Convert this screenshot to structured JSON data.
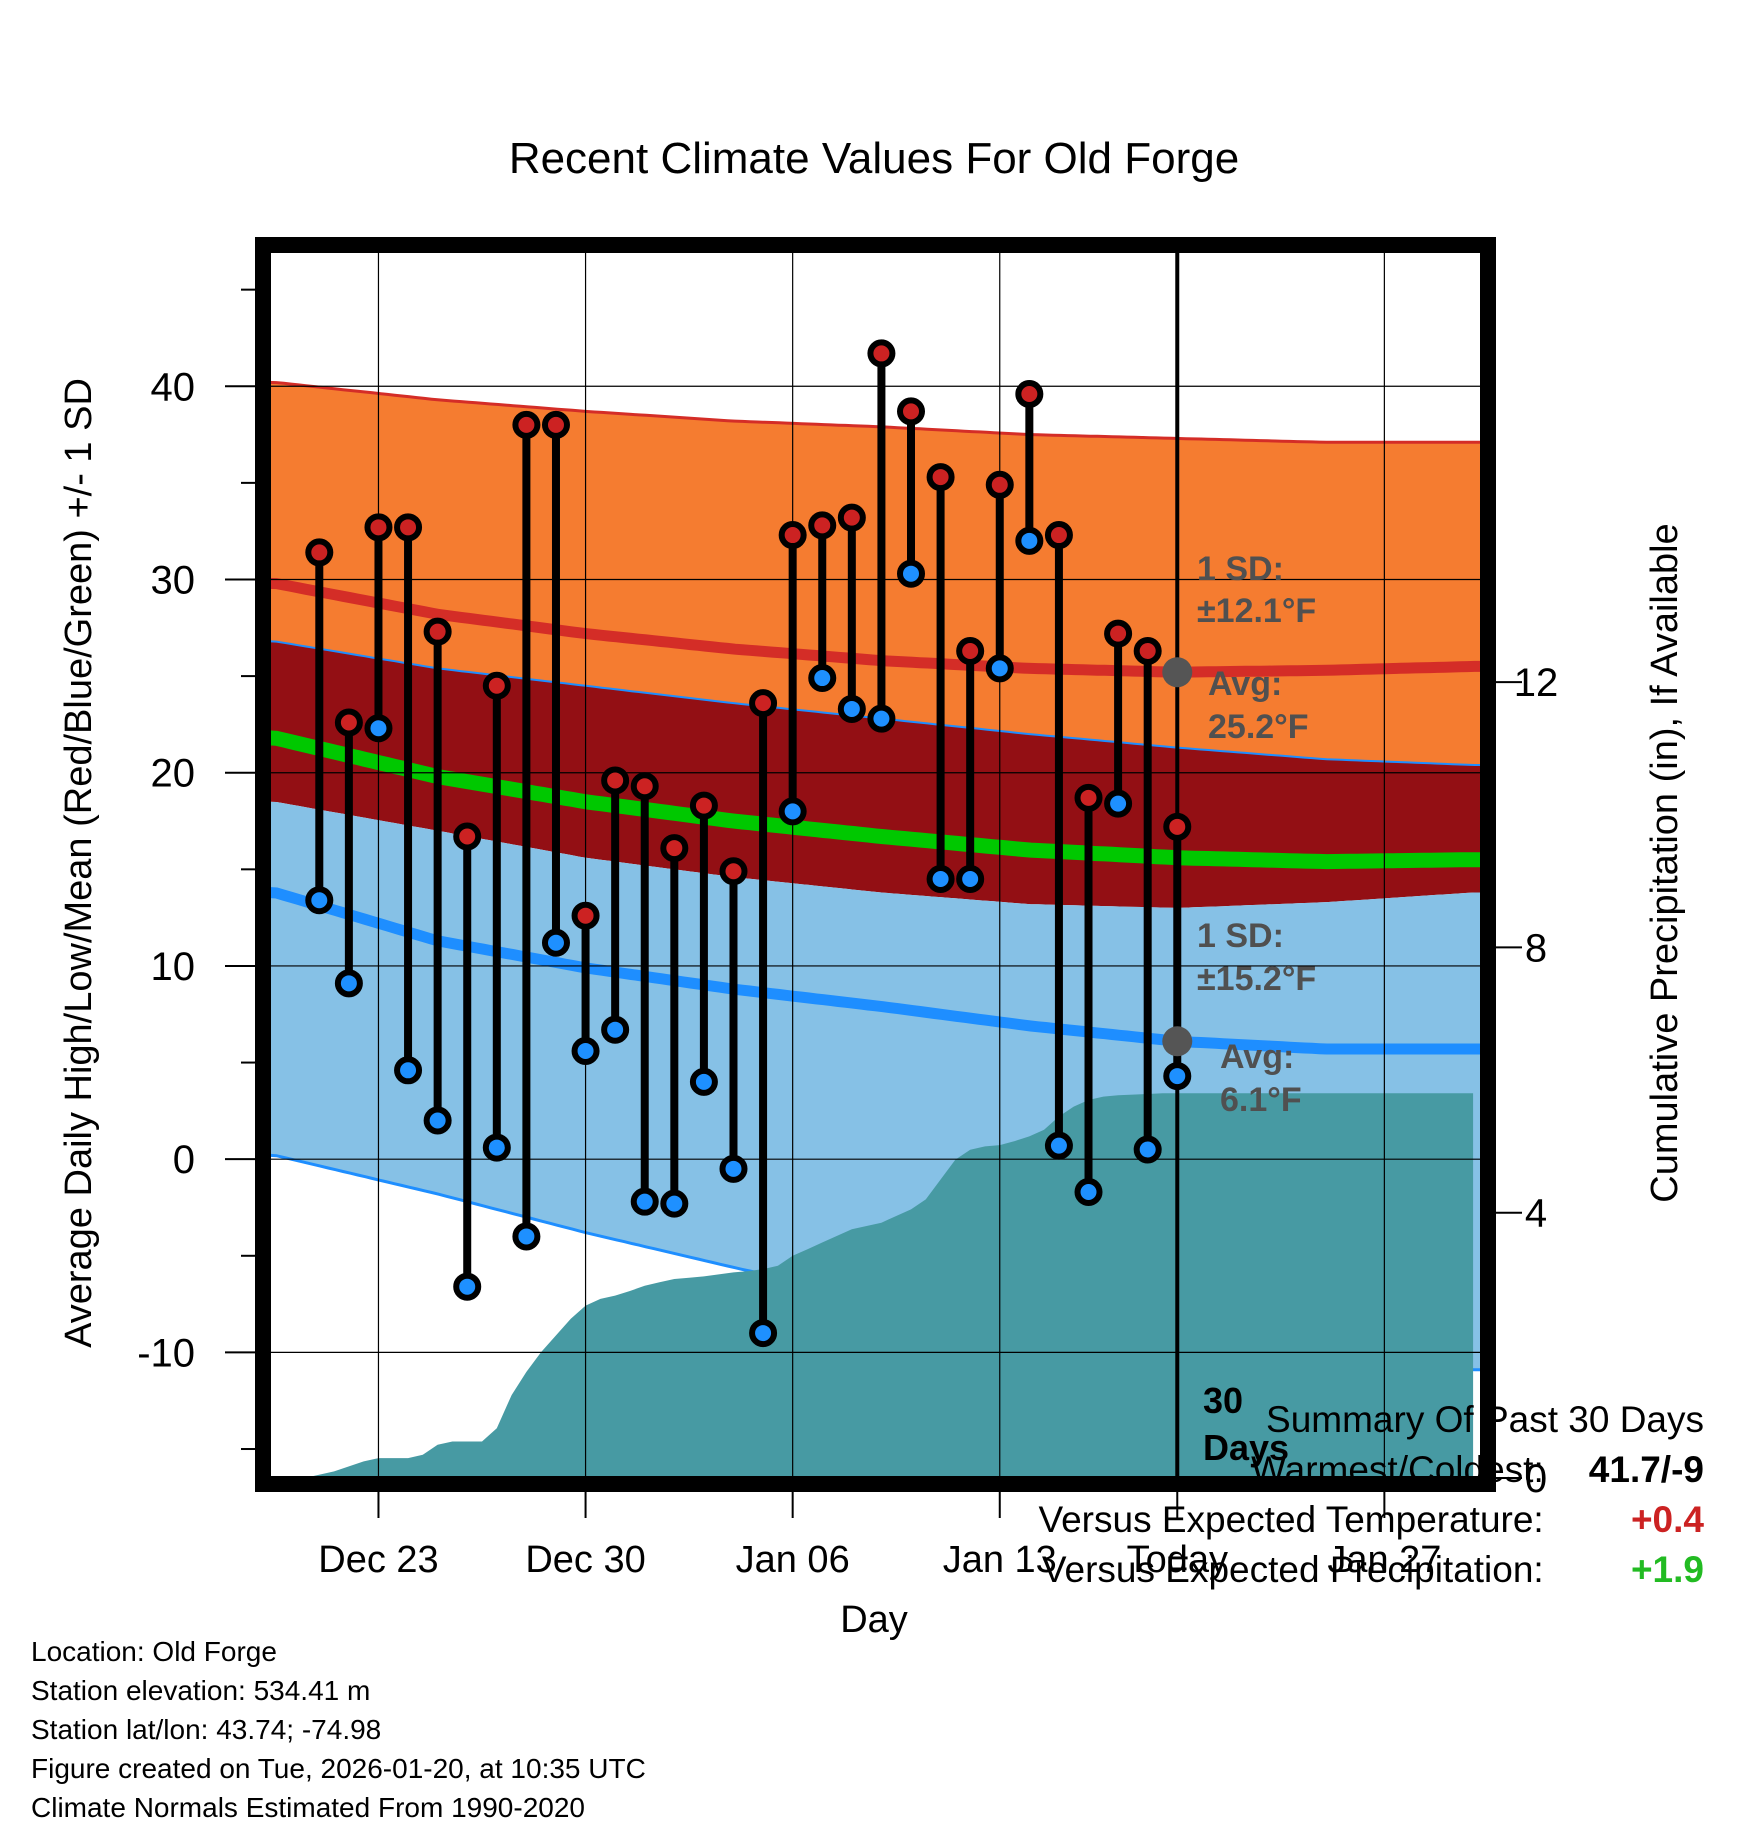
{
  "chart_data": {
    "type": "line",
    "title": "Recent Climate Values For Old Forge",
    "xlabel": "Day",
    "ylabel": "Average Daily High/Low/Mean (Red/Blue/Green) +/- 1 SD",
    "y2label": "Cumulative Precipitation (in), If Available",
    "x_range_days": [
      -30.7,
      10.3
    ],
    "xticks": [
      {
        "day": -27,
        "label": "Dec 23"
      },
      {
        "day": -20,
        "label": "Dec 30"
      },
      {
        "day": -13,
        "label": "Jan 06"
      },
      {
        "day": -6,
        "label": "Jan 13"
      },
      {
        "day": 0,
        "label": "Today"
      },
      {
        "day": 7,
        "label": "Jan 27"
      }
    ],
    "ylim": [
      -16.5,
      47
    ],
    "yticks": [
      -10,
      0,
      10,
      20,
      30,
      40
    ],
    "y2lim": [
      0,
      18.5
    ],
    "y2ticks": [
      0,
      4,
      8,
      12
    ],
    "normals": {
      "days": [
        -30.5,
        -25,
        -20,
        -15,
        -10,
        -5,
        0,
        5,
        10
      ],
      "high_avg": [
        29.8,
        28.2,
        27.2,
        26.4,
        25.8,
        25.4,
        25.2,
        25.3,
        25.5
      ],
      "high_upper": [
        40.2,
        39.3,
        38.7,
        38.2,
        37.9,
        37.5,
        37.3,
        37.1,
        37.1
      ],
      "high_lower": [
        26.8,
        25.4,
        24.5,
        23.6,
        22.8,
        22.0,
        21.3,
        20.7,
        20.4
      ],
      "low_avg": [
        13.8,
        11.3,
        9.9,
        8.8,
        7.9,
        6.9,
        6.1,
        5.7,
        5.7
      ],
      "low_upper": [
        18.5,
        17.0,
        15.6,
        14.6,
        13.8,
        13.2,
        13.0,
        13.3,
        13.8
      ],
      "low_lower": [
        0.2,
        -1.8,
        -3.8,
        -5.6,
        -7.3,
        -8.7,
        -9.9,
        -10.5,
        -10.9
      ],
      "mean_avg": [
        21.8,
        19.8,
        18.5,
        17.5,
        16.7,
        16.0,
        15.6,
        15.4,
        15.5
      ]
    },
    "series": [
      {
        "name": "High",
        "color": "#cc2222",
        "values": [
          31.4,
          22.6,
          32.7,
          32.7,
          27.3,
          16.7,
          24.5,
          38.0,
          38.0,
          12.6,
          19.6,
          19.3,
          16.1,
          18.3,
          14.9,
          23.6,
          32.3,
          32.8,
          33.2,
          41.7,
          38.7,
          35.3,
          26.3,
          34.9,
          39.6,
          32.3,
          18.7,
          27.2,
          26.3,
          17.2
        ]
      },
      {
        "name": "Low",
        "color": "#1e90ff",
        "values": [
          13.4,
          9.1,
          22.3,
          4.6,
          2.0,
          -6.6,
          0.6,
          -4.0,
          11.2,
          5.6,
          6.7,
          -2.2,
          -2.3,
          4.0,
          -0.5,
          -9.0,
          18.0,
          24.9,
          23.3,
          22.8,
          30.3,
          14.5,
          14.5,
          25.4,
          32.0,
          0.7,
          -1.7,
          18.4,
          0.5,
          4.3
        ]
      }
    ],
    "obs_days": [
      -29,
      -28,
      -27,
      -26,
      -25,
      -24,
      -23,
      -22,
      -21,
      -20,
      -19,
      -18,
      -17,
      -16,
      -15,
      -14,
      -13,
      -12,
      -11,
      -10,
      -9,
      -8,
      -7,
      -6,
      -5,
      -4,
      -3,
      -2,
      -1,
      0
    ],
    "precip": {
      "days": [
        -29.5,
        -28.5,
        -27.5,
        -27,
        -26.5,
        -26,
        -25.5,
        -25,
        -24.5,
        -24,
        -23.5,
        -23,
        -22.5,
        -22,
        -21.5,
        -21,
        -20.5,
        -20,
        -19.5,
        -19,
        -18.5,
        -18,
        -17.5,
        -17,
        -16.5,
        -16,
        -15.5,
        -15,
        -14.5,
        -14,
        -13.5,
        -13,
        -12.5,
        -12,
        -11.5,
        -11,
        -10.5,
        -10,
        -9.5,
        -9,
        -8.5,
        -8,
        -7.5,
        -7,
        -6.5,
        -6,
        -5.5,
        -5,
        -4.5,
        -4,
        -3.5,
        -3,
        -2.5,
        -2,
        -1.5,
        -1,
        -0.5,
        0,
        10
      ],
      "cumulative": [
        0,
        0.1,
        0.25,
        0.3,
        0.3,
        0.3,
        0.35,
        0.5,
        0.55,
        0.55,
        0.55,
        0.75,
        1.25,
        1.6,
        1.9,
        2.15,
        2.4,
        2.6,
        2.7,
        2.75,
        2.82,
        2.9,
        2.95,
        3.0,
        3.02,
        3.04,
        3.07,
        3.1,
        3.12,
        3.15,
        3.2,
        3.35,
        3.45,
        3.55,
        3.65,
        3.75,
        3.8,
        3.85,
        3.95,
        4.05,
        4.2,
        4.5,
        4.8,
        4.95,
        5.0,
        5.02,
        5.08,
        5.15,
        5.25,
        5.45,
        5.6,
        5.7,
        5.75,
        5.77,
        5.78,
        5.79,
        5.8,
        5.8,
        5.8
      ]
    },
    "annotations": {
      "high_sd_label": "1 SD:",
      "high_sd_value": "±12.1°F",
      "high_avg_label": "Avg:",
      "high_avg_value": "25.2°F",
      "high_avg_today": 25.2,
      "low_sd_label": "1 SD:",
      "low_sd_value": "±15.2°F",
      "low_avg_label": "Avg:",
      "low_avg_value": "6.1°F",
      "low_avg_today": 6.1,
      "days_label_1": "30",
      "days_label_2": "Days"
    },
    "colors": {
      "high_band": "#f57c30",
      "high_line": "#d42d27",
      "mean_band": "#930f14",
      "mean_line": "#00c800",
      "low_band": "#86c1e6",
      "low_line": "#1e8eff",
      "precip_fill": "#479aa3",
      "annotation_text": "#505050"
    }
  },
  "info": {
    "location": "Location: Old Forge",
    "elevation": "Station elevation: 534.41 m",
    "latlon": "Station lat/lon: 43.74; -74.98",
    "created": "Figure created on Tue, 2026-01-20, at 10:35 UTC",
    "normals": "Climate Normals Estimated From 1990-2020"
  },
  "summary": {
    "title": "Summary Of Past 30 Days",
    "warm_cold_label": "Warmest/Coldest:",
    "warm_cold_value": "41.7/-9",
    "temp_label": "Versus Expected Temperature:",
    "temp_value": "+0.4",
    "temp_color": "#cc2222",
    "precip_label": "Versus Expected Precipitation:",
    "precip_value": "+1.9",
    "precip_color": "#22bb22"
  }
}
